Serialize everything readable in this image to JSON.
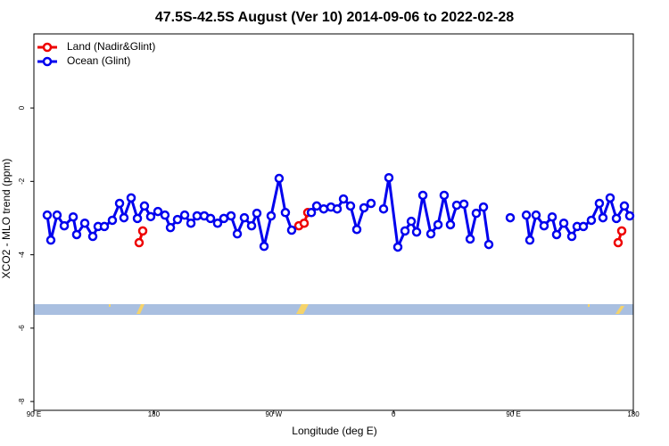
{
  "chart_data": {
    "type": "line",
    "title": "47.5S-42.5S August (Ver 10)   2014-09-06 to 2022-02-28",
    "x_label": "Longitude (deg E)",
    "y_label": "XCO2 - MLO trend (ppm)",
    "xlim": [
      90,
      540
    ],
    "xticks": [
      {
        "value": 90,
        "label": "90 E"
      },
      {
        "value": 180,
        "label": "180"
      },
      {
        "value": 270,
        "label": "90 W"
      },
      {
        "value": 360,
        "label": "0"
      },
      {
        "value": 450,
        "label": "90 E"
      },
      {
        "value": 540,
        "label": "180"
      }
    ],
    "ylim": [
      -8.24,
      2.02
    ],
    "yticks": [
      -8,
      -6,
      -4,
      -2,
      0
    ],
    "legend": "top-left",
    "series": [
      {
        "name": "Land (Nadir&Glint)",
        "color": "#ee0000",
        "x": [
          169.0,
          171.7,
          250,
          288.9,
          292.9,
          295.6,
          420,
          528.6,
          531.3
        ],
        "values": [
          -3.67,
          -3.35,
          null,
          -3.21,
          -3.14,
          -2.85,
          null,
          -3.67,
          -3.35
        ]
      },
      {
        "name": "Ocean (Glint)",
        "color": "#0000ee",
        "x": [
          100.0,
          102.7,
          107.4,
          112.8,
          119.5,
          122.1,
          128.2,
          134.2,
          138.2,
          142.9,
          148.9,
          154.3,
          157.6,
          163.0,
          167.7,
          173.0,
          177.7,
          183.1,
          188.4,
          192.5,
          197.8,
          203.2,
          207.9,
          212.5,
          217.9,
          222.6,
          227.9,
          232.6,
          238.0,
          242.7,
          248.0,
          253.4,
          257.4,
          262.8,
          268.1,
          274.1,
          278.8,
          283.5,
          290,
          298.3,
          302.3,
          307.6,
          313.0,
          317.7,
          322.4,
          327.7,
          332.4,
          337.8,
          343.1,
          348,
          352.5,
          356.5,
          363.2,
          368.6,
          373.3,
          377.3,
          382.0,
          388.0,
          393.4,
          398.0,
          402.7,
          407.4,
          412.8,
          417.5,
          422.1,
          427.5,
          431.5,
          440,
          447.6,
          453,
          459.7,
          462.3,
          467.0,
          473.0,
          479.1,
          482.4,
          487.8,
          493.8,
          497.8,
          502.5,
          508.5,
          514.5,
          517.2,
          522.6,
          527.3,
          533.3,
          537.3
        ],
        "values": [
          -2.92,
          -3.6,
          -2.92,
          -3.21,
          -2.97,
          -3.45,
          -3.14,
          -3.5,
          -3.23,
          -3.23,
          -3.06,
          -2.6,
          -2.99,
          -2.45,
          -3.01,
          -2.67,
          -2.96,
          -2.82,
          -2.92,
          -3.26,
          -3.04,
          -2.92,
          -3.14,
          -2.94,
          -2.94,
          -3.01,
          -3.14,
          -3.01,
          -2.94,
          -3.43,
          -2.99,
          -3.21,
          -2.87,
          -3.77,
          -2.94,
          -1.92,
          -2.85,
          -3.33,
          null,
          -2.85,
          -2.67,
          -2.75,
          -2.7,
          -2.75,
          -2.48,
          -2.67,
          -3.31,
          -2.72,
          -2.6,
          null,
          -2.75,
          -1.9,
          -3.79,
          -3.35,
          -3.09,
          -3.38,
          -2.38,
          -3.43,
          -3.18,
          -2.38,
          -3.18,
          -2.65,
          -2.62,
          -3.57,
          -2.87,
          -2.7,
          -3.72,
          null,
          -2.99,
          null,
          -2.92,
          -3.6,
          -2.92,
          -3.21,
          -2.97,
          -3.45,
          -3.14,
          -3.5,
          -3.23,
          -3.23,
          -3.06,
          -2.6,
          -2.99,
          -2.45,
          -3.01,
          -2.67,
          -2.94
        ]
      }
    ]
  }
}
